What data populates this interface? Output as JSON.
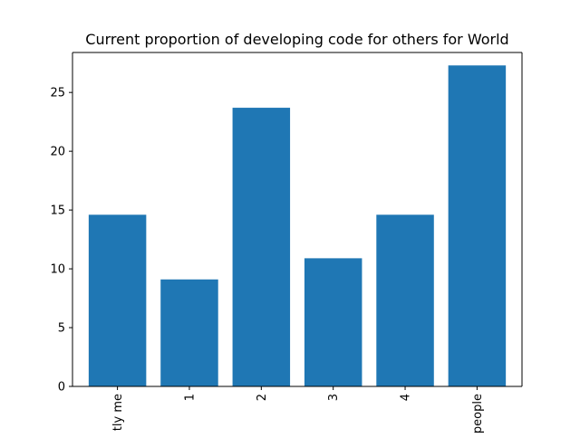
{
  "chart_data": {
    "type": "bar",
    "title": "Current proportion of developing code for others for World",
    "xlabel": "",
    "ylabel": "",
    "categories": [
      "tly me",
      "1",
      "2",
      "3",
      "4",
      "people"
    ],
    "values": [
      14.6,
      9.1,
      23.7,
      10.9,
      14.6,
      27.3
    ],
    "ylim": [
      0,
      28.4
    ],
    "yticks": [
      0,
      5,
      10,
      15,
      20,
      25
    ],
    "bar_color": "#1f77b4",
    "grid": false,
    "legend": "none"
  }
}
